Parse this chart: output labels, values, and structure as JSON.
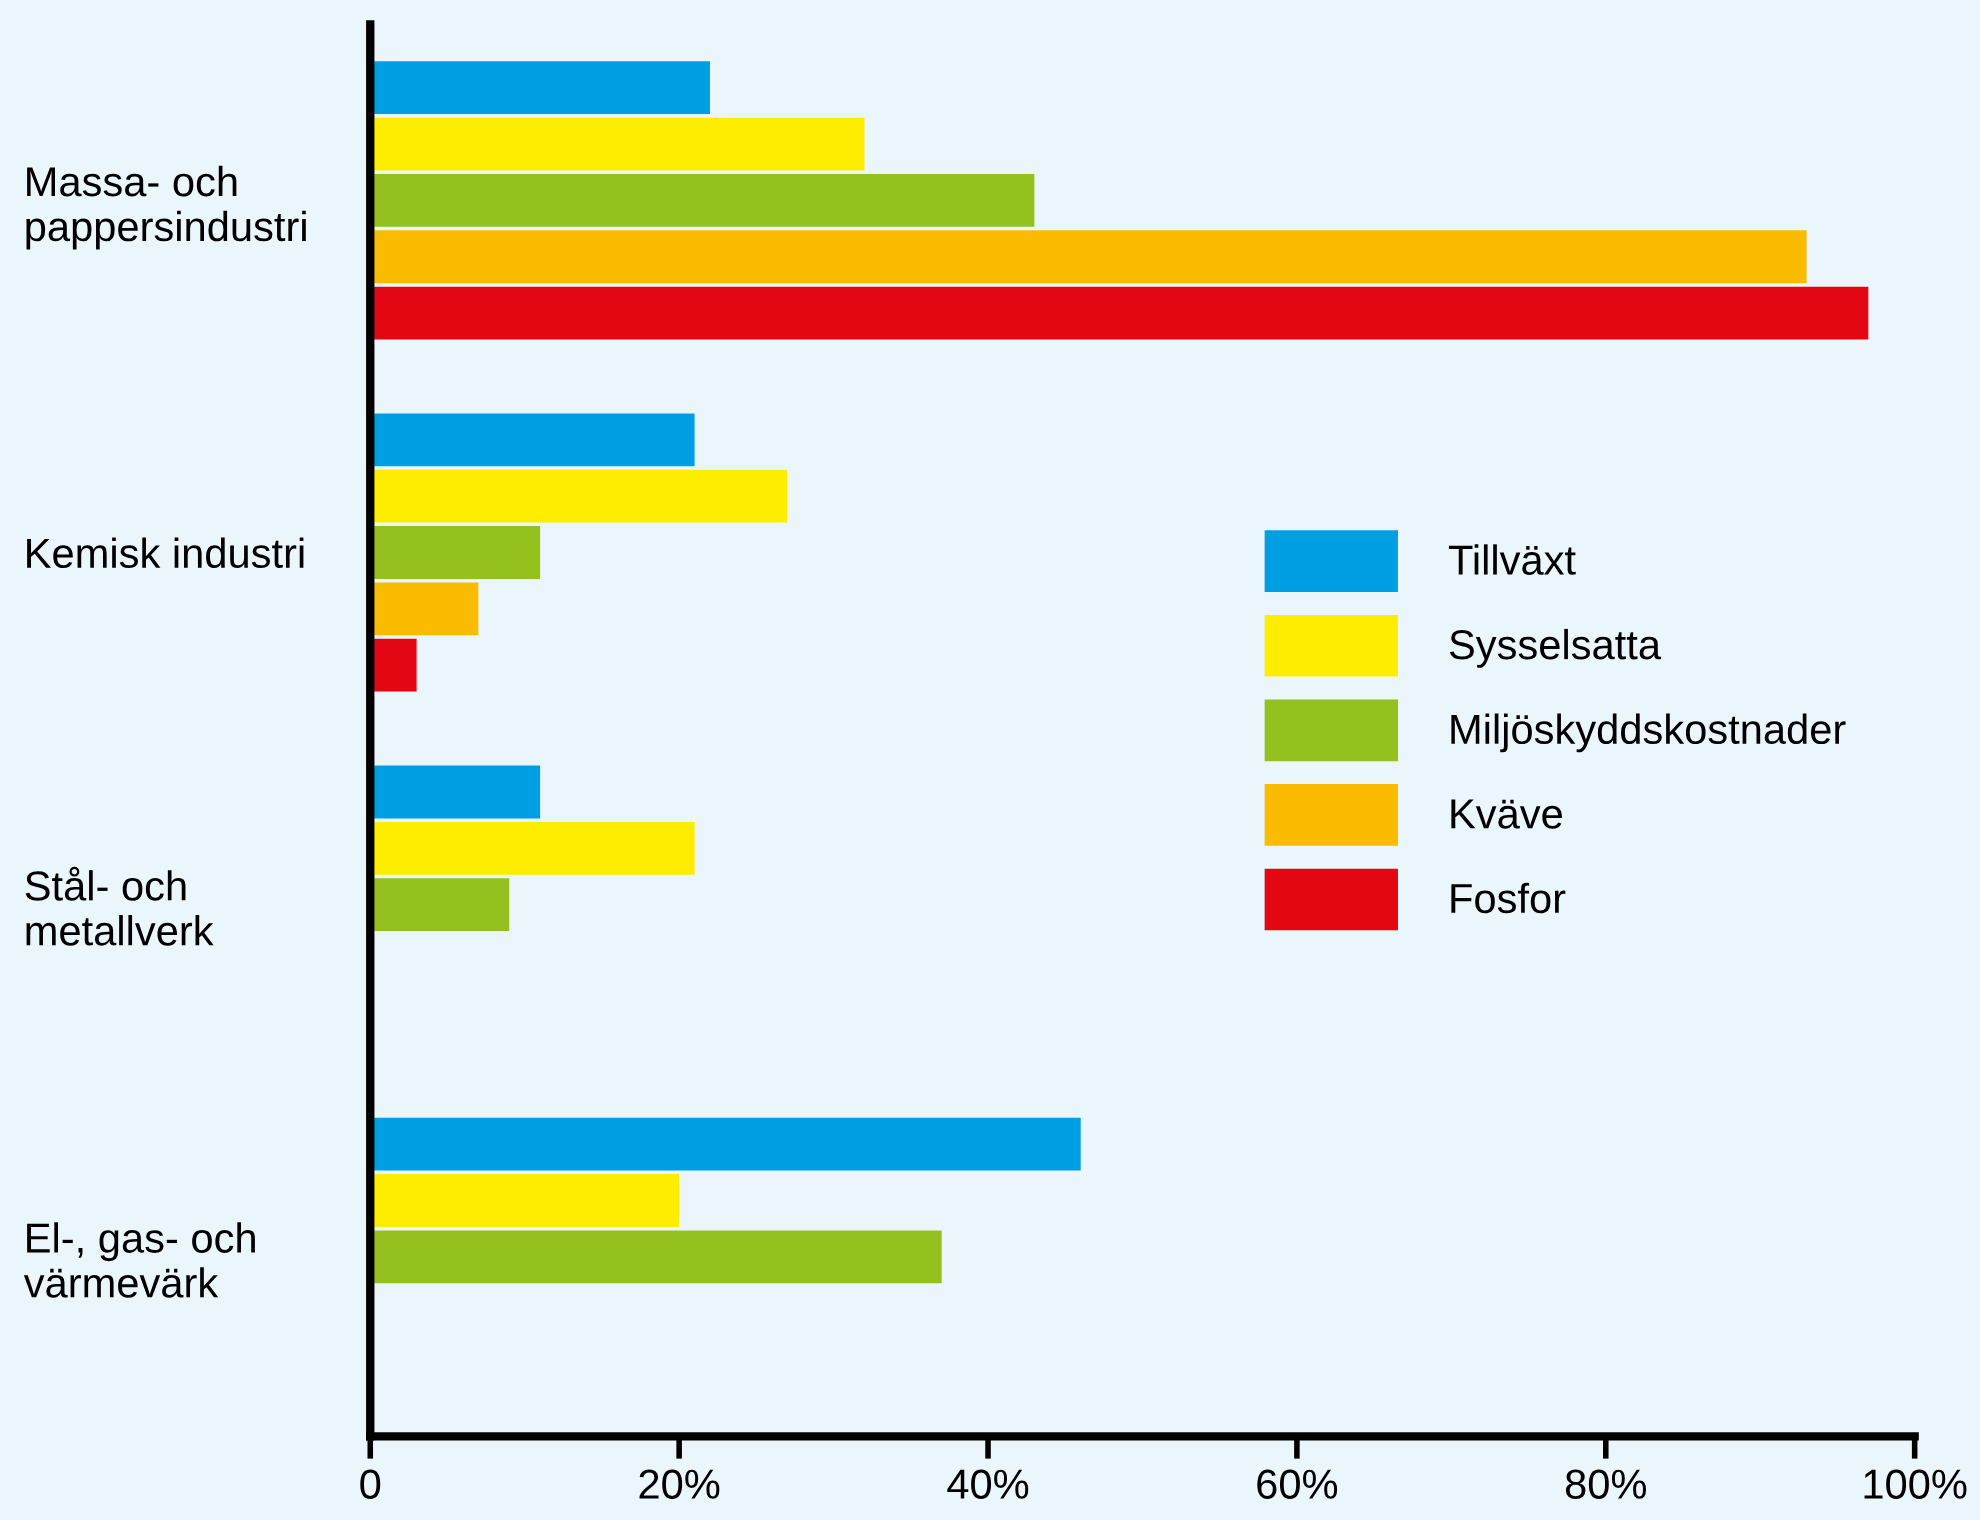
{
  "chart_data": {
    "type": "bar",
    "orientation": "horizontal",
    "categories": [
      "Massa- och\npappersindustri",
      "Kemisk industri",
      "Stål- och\nmetallverk",
      "El-, gas- och\nvärmevärk"
    ],
    "series": [
      {
        "name": "Tillväxt",
        "color": "#009fe3",
        "values": [
          22,
          21,
          11,
          46
        ]
      },
      {
        "name": "Sysselsatta",
        "color": "#ffed00",
        "values": [
          32,
          27,
          21,
          20
        ]
      },
      {
        "name": "Miljöskyddskostnader",
        "color": "#95c11f",
        "values": [
          43,
          11,
          9,
          37
        ]
      },
      {
        "name": "Kväve",
        "color": "#fbbb00",
        "values": [
          93,
          7,
          null,
          null
        ]
      },
      {
        "name": "Fosfor",
        "color": "#e30613",
        "values": [
          97,
          3,
          null,
          null
        ]
      }
    ],
    "xlim": [
      0,
      100
    ],
    "xticks": [
      {
        "value": 0,
        "label": "0"
      },
      {
        "value": 20,
        "label": "20%"
      },
      {
        "value": 40,
        "label": "40%"
      },
      {
        "value": 60,
        "label": "60%"
      },
      {
        "value": 80,
        "label": "80%"
      },
      {
        "value": 100,
        "label": "100%"
      }
    ],
    "legend": "right",
    "grid": false
  }
}
